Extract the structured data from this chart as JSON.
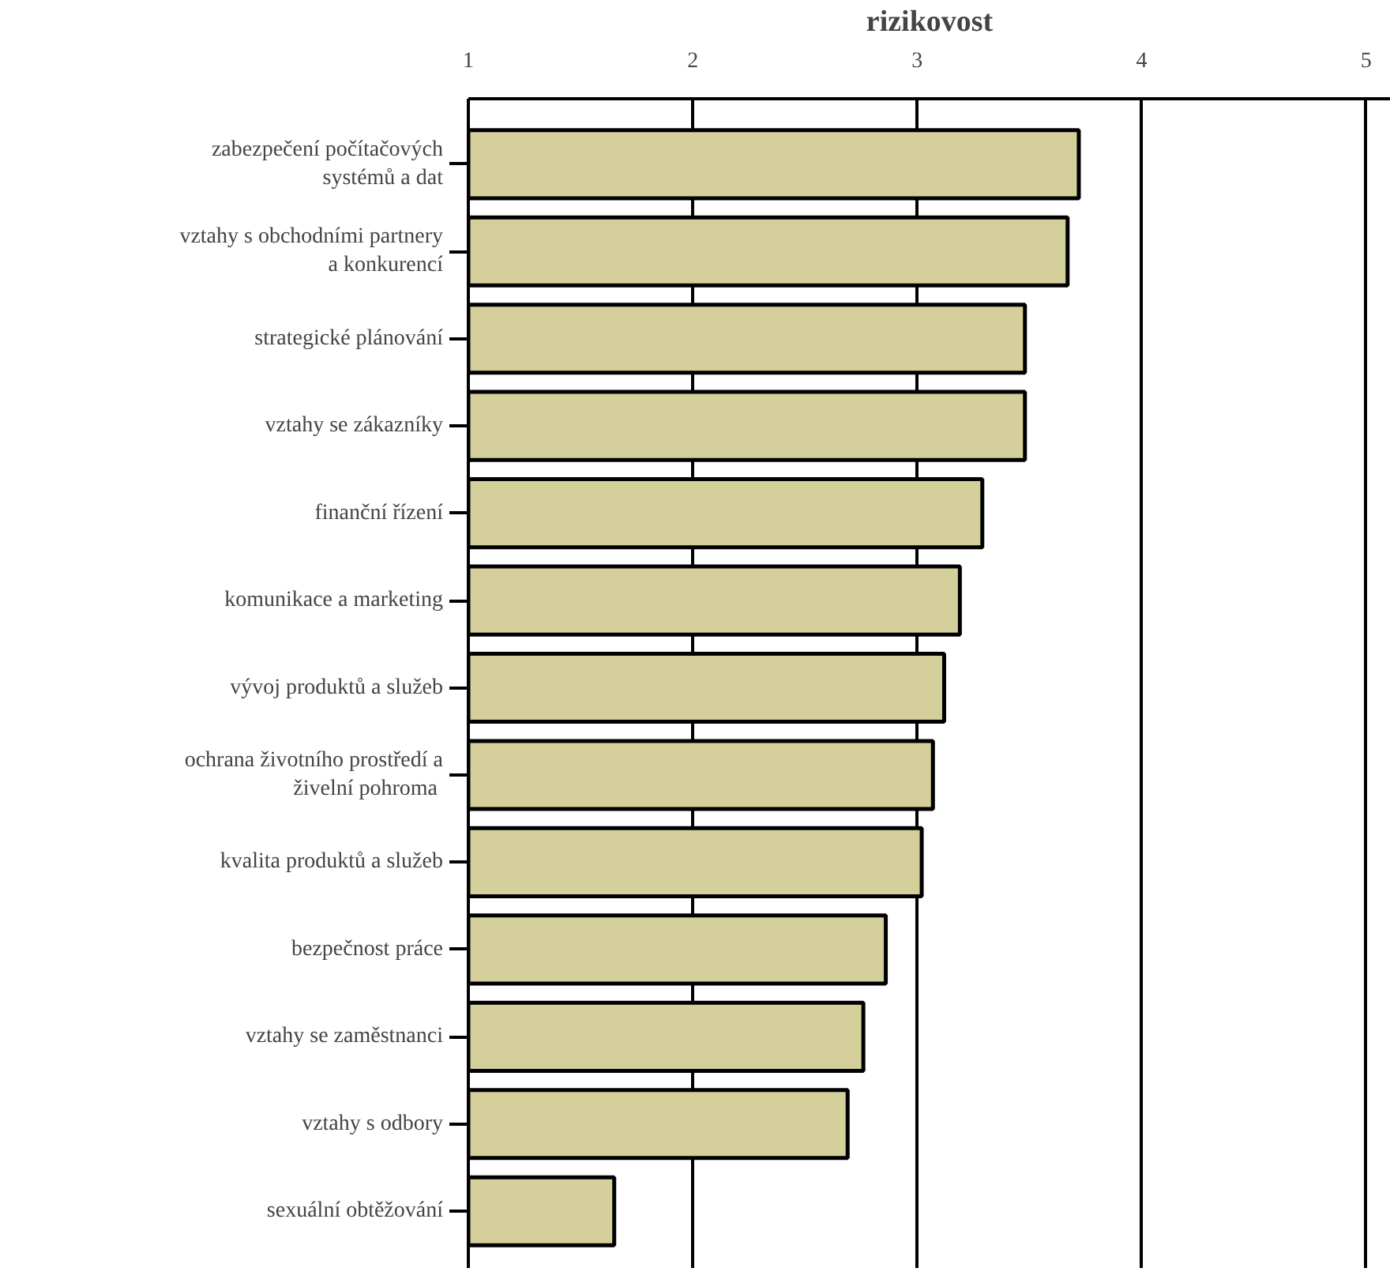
{
  "chart_data": {
    "type": "bar",
    "orientation": "horizontal",
    "xlabel": "rizikovost",
    "categories": [
      "zabezpečení počítačových\nsystémů a dat",
      "vztahy s obchodními partnery\na konkurencí",
      "strategické plánování",
      "vztahy se zákazníky",
      "finanční řízení",
      "komunikace a marketing",
      "vývoj produktů a služeb",
      "ochrana životního prostředí a\n živelní pohroma",
      "kvalita produktů a služeb",
      "bezpečnost práce",
      "vztahy se zaměstnanci",
      "vztahy s odbory",
      "sexuální obtěžování"
    ],
    "values": [
      3.72,
      3.67,
      3.48,
      3.48,
      3.29,
      3.19,
      3.12,
      3.07,
      3.02,
      2.86,
      2.76,
      2.69,
      1.65
    ],
    "color": "#d5cf9b",
    "xlim": [
      1,
      5.11
    ],
    "xticks": [
      1,
      2,
      3,
      4,
      5
    ],
    "grid": "x"
  }
}
